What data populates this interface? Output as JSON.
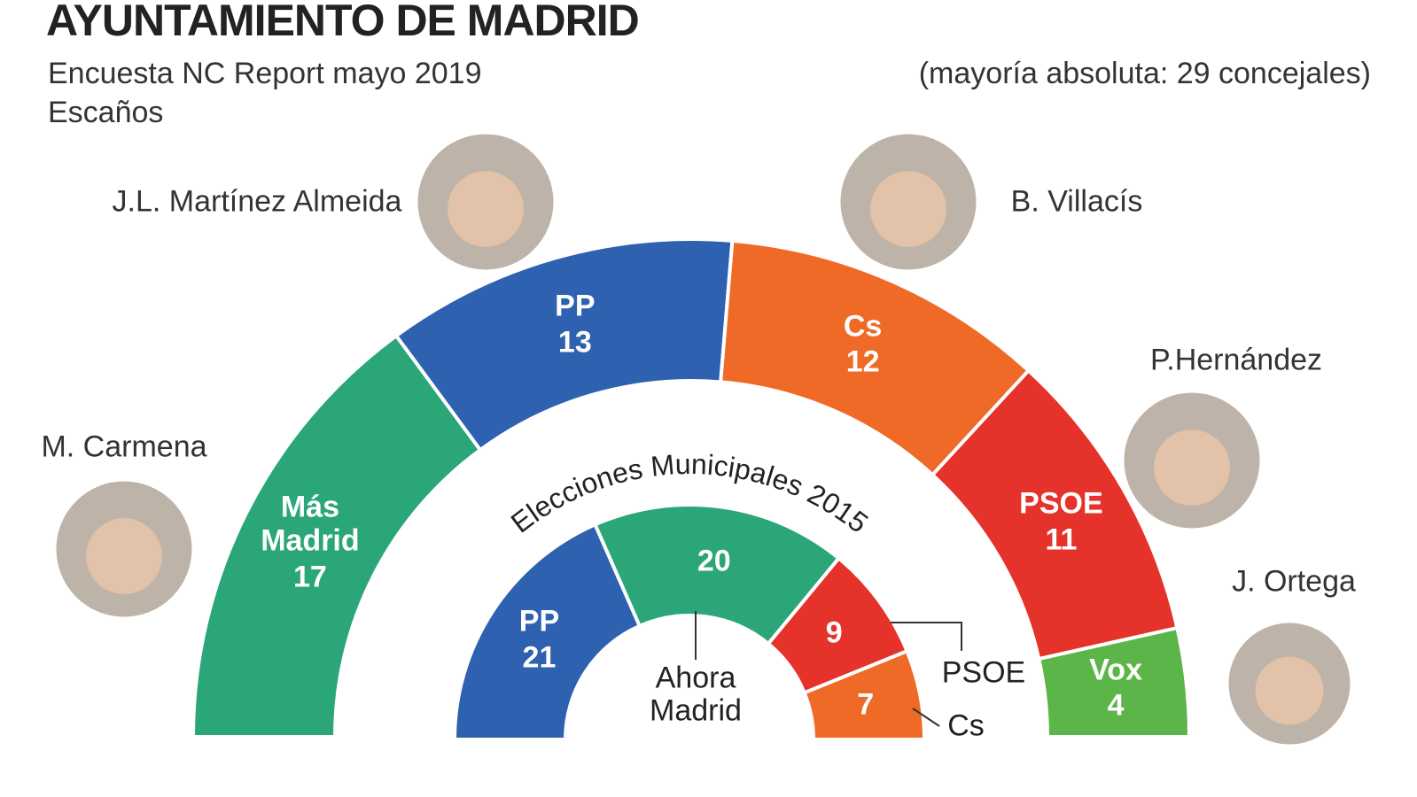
{
  "chart_data": [
    {
      "type": "half-donut",
      "title": "AYUNTAMIENTO DE MADRID",
      "subtitle": "Encuesta NC Report mayo 2019",
      "unit_label": "Escaños",
      "note": "(mayoría absoluta: 29 concejales)",
      "categories": [
        "Más Madrid",
        "PP",
        "Cs",
        "PSOE",
        "Vox"
      ],
      "values": [
        17,
        13,
        12,
        11,
        4
      ],
      "colors": [
        "#2ba679",
        "#2e62b0",
        "#f06a27",
        "#e5322b",
        "#5cb548"
      ],
      "annotations": [
        "J.L. Martínez Almeida",
        "B. Villacís",
        "M. Carmena",
        "P.Hernández",
        "J. Ortega"
      ]
    },
    {
      "type": "half-donut",
      "title": "Elecciones Municipales 2015",
      "categories": [
        "PP",
        "Ahora Madrid",
        "PSOE",
        "Cs"
      ],
      "values": [
        21,
        20,
        9,
        7
      ],
      "colors": [
        "#2e62b0",
        "#2ba679",
        "#e5322b",
        "#f06a27"
      ]
    }
  ]
}
